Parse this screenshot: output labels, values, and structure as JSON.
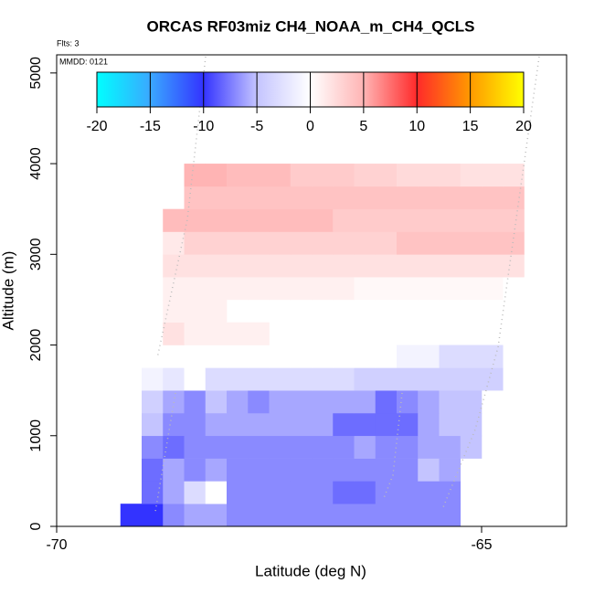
{
  "chart_data": {
    "type": "heatmap",
    "title": "ORCAS RF03miz CH4_NOAA_m_CH4_QCLS",
    "annotations": [
      "Flts: 3",
      "MMDD: 0121"
    ],
    "xlabel": "Latitude (deg N)",
    "ylabel": "Altitude (m)",
    "xlim": [
      -70,
      -64
    ],
    "xticks": [
      -70,
      -65
    ],
    "ylim": [
      0,
      5200
    ],
    "yticks": [
      0,
      1000,
      2000,
      3000,
      4000,
      5000
    ],
    "colorbar_ticks": [
      -20,
      -15,
      -10,
      -5,
      0,
      5,
      10,
      15,
      20
    ],
    "colorscale": [
      {
        "value": -20,
        "color": "#00ffff"
      },
      {
        "value": -15,
        "color": "#3aa8ff"
      },
      {
        "value": -10,
        "color": "#3333ff"
      },
      {
        "value": -5,
        "color": "#c4c4ff"
      },
      {
        "value": 0,
        "color": "#ffffff"
      },
      {
        "value": 5,
        "color": "#ffb4b4"
      },
      {
        "value": 10,
        "color": "#ff2a2a"
      },
      {
        "value": 15,
        "color": "#ff9900"
      },
      {
        "value": 20,
        "color": "#ffff00"
      }
    ],
    "xbins": [
      -69.25,
      -69,
      -68.75,
      -68.5,
      -68.25,
      -68,
      -67.75,
      -67.5,
      -67.25,
      -67,
      -66.75,
      -66.5,
      -66.25,
      -66,
      -65.75,
      -65.5,
      -65.25,
      -65,
      -64.75,
      -64.5
    ],
    "ybins": [
      0,
      250,
      500,
      750,
      1000,
      1250,
      1500,
      1750,
      2000,
      2250,
      2500,
      2750,
      3000,
      3250,
      3500,
      3750,
      4000
    ],
    "z": [
      [
        -10,
        -10,
        -7,
        -6,
        -6,
        -7,
        -7,
        -7,
        -7,
        -7,
        -7,
        -7,
        -7,
        -7,
        -7,
        -7,
        null,
        null,
        null
      ],
      [
        null,
        -8,
        -6,
        -3,
        0,
        -7,
        -7,
        -7,
        -7,
        -7,
        -8,
        -8,
        -7,
        -7,
        -7,
        -7,
        null,
        null,
        null
      ],
      [
        null,
        -8,
        -6,
        -7,
        -6,
        -7,
        -7,
        -7,
        -7,
        -7,
        -7,
        -7,
        -7,
        -7,
        -5,
        -6,
        null,
        null,
        null
      ],
      [
        null,
        -7,
        -8,
        -7,
        -7,
        -7,
        -7,
        -7,
        -7,
        -7,
        -7,
        -6,
        -7,
        -7,
        -6,
        -6,
        -5,
        null,
        null
      ],
      [
        null,
        -5,
        -7,
        -7,
        -6,
        -6,
        -6,
        -6,
        -6,
        -6,
        -8,
        -8,
        -8,
        -8,
        -6,
        -5,
        -5,
        null,
        null
      ],
      [
        null,
        -4,
        -6,
        -7,
        -5,
        -6,
        -7,
        -6,
        -6,
        -6,
        -6,
        -6,
        -8,
        -7,
        -6,
        -5,
        -5,
        null,
        null
      ],
      [
        null,
        -1,
        -2,
        0,
        -3,
        -3,
        -3,
        -3,
        -3,
        -3,
        -3,
        -4,
        -4,
        -4,
        -4,
        -4,
        -4,
        -4,
        null
      ],
      [
        0,
        0,
        0,
        0,
        0,
        0,
        0,
        0,
        0,
        0,
        0,
        0,
        0,
        -1,
        -1,
        -3,
        -3,
        -3,
        null
      ],
      [
        null,
        null,
        2,
        1,
        1,
        1,
        1,
        null,
        null,
        null,
        null,
        null,
        null,
        null,
        null,
        null,
        null,
        null,
        null
      ],
      [
        null,
        null,
        1,
        1,
        1,
        null,
        null,
        null,
        null,
        null,
        null,
        null,
        null,
        null,
        null,
        null,
        null,
        null,
        null
      ],
      [
        null,
        null,
        1,
        1,
        1,
        1,
        1,
        1,
        1,
        1,
        1,
        0.5,
        0.5,
        0.5,
        0.5,
        0.5,
        0.5,
        0.5,
        null
      ],
      [
        null,
        null,
        2,
        2,
        2,
        2,
        2,
        2,
        2,
        2,
        2,
        2,
        2,
        2,
        2,
        2,
        2,
        2,
        2
      ],
      [
        null,
        null,
        1.5,
        3,
        3,
        3,
        3,
        3,
        3,
        3,
        3,
        3,
        3,
        4,
        4,
        4,
        4,
        4,
        4
      ],
      [
        null,
        null,
        4.5,
        4.5,
        4.5,
        4.5,
        4.5,
        4.5,
        4.5,
        4.5,
        3.5,
        3.5,
        3.5,
        3.5,
        3.5,
        3.5,
        3.5,
        3.5,
        3.5
      ],
      [
        null,
        null,
        null,
        4,
        4,
        4,
        4,
        4,
        4,
        4,
        4,
        4,
        4,
        4,
        4,
        4,
        4,
        4,
        4
      ],
      [
        null,
        null,
        null,
        5,
        5,
        4.5,
        4.5,
        4.5,
        3.5,
        3.5,
        3.5,
        3,
        3,
        2.5,
        2.5,
        2.5,
        2,
        2,
        2
      ]
    ]
  }
}
